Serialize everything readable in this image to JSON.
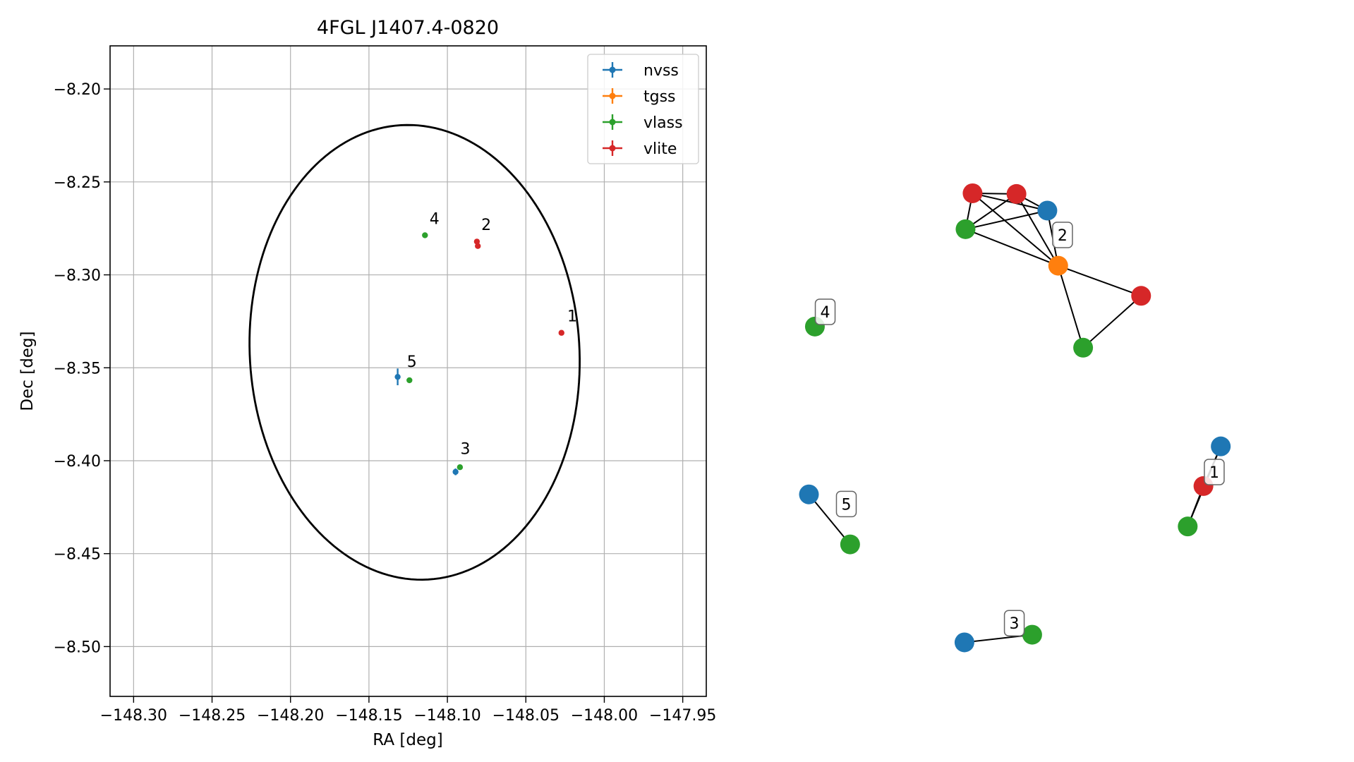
{
  "chart_data": [
    {
      "type": "scatter",
      "title": "4FGL J1407.4-0820",
      "xlabel": "RA [deg]",
      "ylabel": "Dec [deg]",
      "xlim": [
        -148.315,
        -147.935
      ],
      "ylim": [
        -8.5268,
        -8.1768
      ],
      "xticks": [
        -148.3,
        -148.25,
        -148.2,
        -148.15,
        -148.1,
        -148.05,
        -148.0,
        -147.95
      ],
      "xtick_labels": [
        "−148.30",
        "−148.25",
        "−148.20",
        "−148.15",
        "−148.10",
        "−148.05",
        "−148.00",
        "−147.95"
      ],
      "yticks": [
        -8.2,
        -8.25,
        -8.3,
        -8.35,
        -8.4,
        -8.45,
        -8.5
      ],
      "ytick_labels": [
        "−8.20",
        "−8.25",
        "−8.30",
        "−8.35",
        "−8.40",
        "−8.45",
        "−8.50"
      ],
      "grid": true,
      "legend_position": "top-right",
      "ellipse": {
        "center_ra": -148.1209,
        "center_dec": -8.3417,
        "semi_major": 0.1226,
        "semi_minor": 0.1049,
        "angle_deg": 97.5,
        "color": "#000000"
      },
      "series": [
        {
          "name": "nvss",
          "color": "#1f77b4",
          "points": [
            {
              "ra": -148.1317,
              "dec": -8.3549,
              "ra_err": 0.0,
              "dec_err": 0.0045
            },
            {
              "ra": -148.0948,
              "dec": -8.406,
              "ra_err": 0.0,
              "dec_err": 0.0018
            }
          ]
        },
        {
          "name": "tgss",
          "color": "#ff7f0e",
          "points": []
        },
        {
          "name": "vlass",
          "color": "#2ca02c",
          "points": [
            {
              "ra": -148.1143,
              "dec": -8.2787,
              "ra_err": 0,
              "dec_err": 0
            },
            {
              "ra": -148.1242,
              "dec": -8.3567,
              "ra_err": 0,
              "dec_err": 0
            },
            {
              "ra": -148.092,
              "dec": -8.4035,
              "ra_err": 0,
              "dec_err": 0
            }
          ]
        },
        {
          "name": "vlite",
          "color": "#d62728",
          "points": [
            {
              "ra": -148.0812,
              "dec": -8.2821,
              "ra_err": 0,
              "dec_err": 0
            },
            {
              "ra": -148.0806,
              "dec": -8.2845,
              "ra_err": 0,
              "dec_err": 0
            },
            {
              "ra": -148.0273,
              "dec": -8.3312,
              "ra_err": 0,
              "dec_err": 0
            }
          ]
        }
      ],
      "labels": [
        {
          "text": "1",
          "ra": -148.0236,
          "dec": -8.325
        },
        {
          "text": "2",
          "ra": -148.0784,
          "dec": -8.2759
        },
        {
          "text": "3",
          "ra": -148.0917,
          "dec": -8.3964
        },
        {
          "text": "4",
          "ra": -148.1114,
          "dec": -8.2726
        },
        {
          "text": "5",
          "ra": -148.1258,
          "dec": -8.3495
        }
      ]
    },
    {
      "type": "network",
      "node_colors": {
        "nvss": "#1f77b4",
        "tgss": "#ff7f0e",
        "vlass": "#2ca02c",
        "vlite": "#d62728"
      },
      "nodes": [
        {
          "id": "a",
          "survey": "vlite",
          "x": 0.343,
          "y": 0.185
        },
        {
          "id": "b",
          "survey": "vlite",
          "x": 0.424,
          "y": 0.186
        },
        {
          "id": "c",
          "survey": "nvss",
          "x": 0.481,
          "y": 0.212
        },
        {
          "id": "d",
          "survey": "vlass",
          "x": 0.33,
          "y": 0.241
        },
        {
          "id": "e",
          "survey": "tgss",
          "x": 0.501,
          "y": 0.298
        },
        {
          "id": "f",
          "survey": "vlite",
          "x": 0.654,
          "y": 0.345
        },
        {
          "id": "g",
          "survey": "vlass",
          "x": 0.547,
          "y": 0.426
        },
        {
          "id": "h",
          "survey": "vlass",
          "x": 0.052,
          "y": 0.393
        },
        {
          "id": "i",
          "survey": "nvss",
          "x": 0.041,
          "y": 0.655
        },
        {
          "id": "j",
          "survey": "vlass",
          "x": 0.117,
          "y": 0.733
        },
        {
          "id": "k",
          "survey": "nvss",
          "x": 0.801,
          "y": 0.58
        },
        {
          "id": "l",
          "survey": "vlite",
          "x": 0.769,
          "y": 0.642
        },
        {
          "id": "m",
          "survey": "vlass",
          "x": 0.74,
          "y": 0.705
        },
        {
          "id": "n",
          "survey": "nvss",
          "x": 0.328,
          "y": 0.886
        },
        {
          "id": "o",
          "survey": "vlass",
          "x": 0.453,
          "y": 0.874
        }
      ],
      "edges": [
        [
          "a",
          "b"
        ],
        [
          "a",
          "c"
        ],
        [
          "a",
          "d"
        ],
        [
          "a",
          "e"
        ],
        [
          "b",
          "c"
        ],
        [
          "b",
          "d"
        ],
        [
          "b",
          "e"
        ],
        [
          "c",
          "d"
        ],
        [
          "c",
          "e"
        ],
        [
          "d",
          "e"
        ],
        [
          "e",
          "f"
        ],
        [
          "e",
          "g"
        ],
        [
          "f",
          "g"
        ],
        [
          "i",
          "j"
        ],
        [
          "k",
          "l"
        ],
        [
          "l",
          "m"
        ],
        [
          "k",
          "m"
        ],
        [
          "n",
          "o"
        ]
      ],
      "group_labels": [
        {
          "text": "2",
          "x": 0.509,
          "y": 0.25
        },
        {
          "text": "4",
          "x": 0.071,
          "y": 0.37
        },
        {
          "text": "5",
          "x": 0.11,
          "y": 0.67
        },
        {
          "text": "1",
          "x": 0.789,
          "y": 0.62
        },
        {
          "text": "3",
          "x": 0.42,
          "y": 0.856
        }
      ]
    }
  ]
}
